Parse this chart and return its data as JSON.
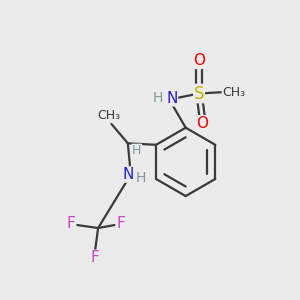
{
  "bg_color": "#ebebeb",
  "atom_colors": {
    "C": "#3a3a3a",
    "H": "#7a9a9a",
    "N": "#2020cc",
    "S": "#b8b800",
    "O": "#ee0000",
    "F": "#cc44cc"
  },
  "bond_color": "#3a3a3a"
}
